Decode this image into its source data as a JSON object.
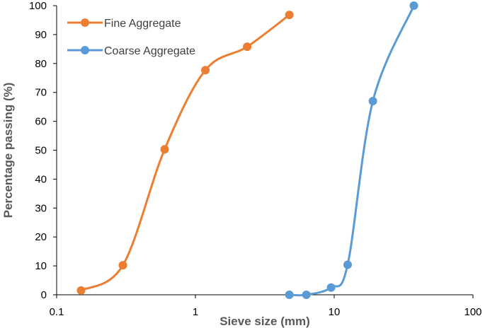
{
  "chart_data": {
    "type": "scatter",
    "xlabel": "Sieve size (mm)",
    "ylabel": "Percentage passing (%)",
    "x_scale": "log",
    "xlim": [
      0.1,
      100
    ],
    "ylim": [
      0,
      100
    ],
    "x_ticks": [
      "0.1",
      "1",
      "10",
      "100"
    ],
    "y_ticks": [
      "0",
      "10",
      "20",
      "30",
      "40",
      "50",
      "60",
      "70",
      "80",
      "90",
      "100"
    ],
    "grid": false,
    "legend_position": "top-left",
    "series": [
      {
        "name": "Fine Aggregate",
        "color": "#ED7D31",
        "x": [
          0.15,
          0.3,
          0.6,
          1.18,
          2.36,
          4.75
        ],
        "y": [
          1.5,
          10.2,
          50.3,
          77.7,
          85.8,
          96.8
        ]
      },
      {
        "name": "Coarse Aggregate",
        "color": "#5B9BD5",
        "x": [
          4.75,
          6.3,
          9.5,
          12.5,
          19,
          37.5
        ],
        "y": [
          0,
          0,
          2.5,
          10.4,
          67,
          100
        ]
      }
    ]
  }
}
